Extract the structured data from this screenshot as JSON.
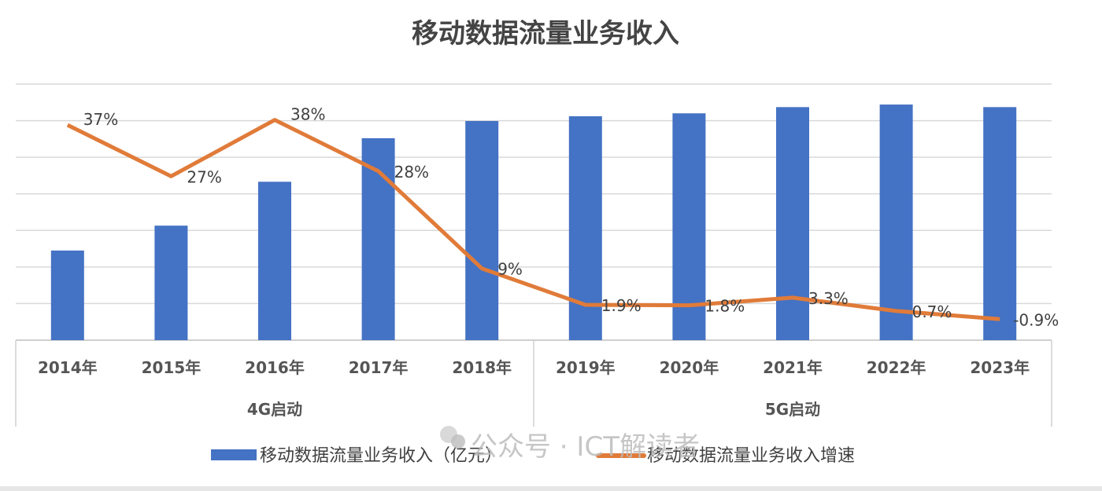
{
  "chart_data": {
    "type": "bar+line",
    "title": "移动数据流量业务收入",
    "categories": [
      "2014年",
      "2015年",
      "2016年",
      "2017年",
      "2018年",
      "2019年",
      "2020年",
      "2021年",
      "2022年",
      "2023年"
    ],
    "groups": [
      {
        "label": "4G启动",
        "span": [
          0,
          4
        ]
      },
      {
        "label": "5G启动",
        "span": [
          5,
          9
        ]
      }
    ],
    "series": [
      {
        "name": "移动数据流量业务收入（亿元）",
        "type": "bar",
        "axis": "primary",
        "color": "#4472C4",
        "values": [
          2450,
          3130,
          4330,
          5520,
          5990,
          6120,
          6200,
          6370,
          6440,
          6370
        ]
      },
      {
        "name": "移动数据流量业务收入增速",
        "type": "line",
        "axis": "secondary",
        "color": "#E07B39",
        "values": [
          37,
          27,
          38,
          28,
          9,
          1.9,
          1.8,
          3.3,
          0.7,
          -0.9
        ],
        "labels": [
          "37%",
          "27%",
          "38%",
          "28%",
          "9%",
          "1.9%",
          "1.8%",
          "3.3%",
          "0.7%",
          "-0.9%"
        ]
      }
    ],
    "ylim": [
      0,
      7000
    ],
    "y2lim": [
      -5,
      45
    ],
    "y_tick_labels_shown": false,
    "grid": true,
    "legend": "bottom"
  },
  "watermark": "公众号 · ICT解读者"
}
